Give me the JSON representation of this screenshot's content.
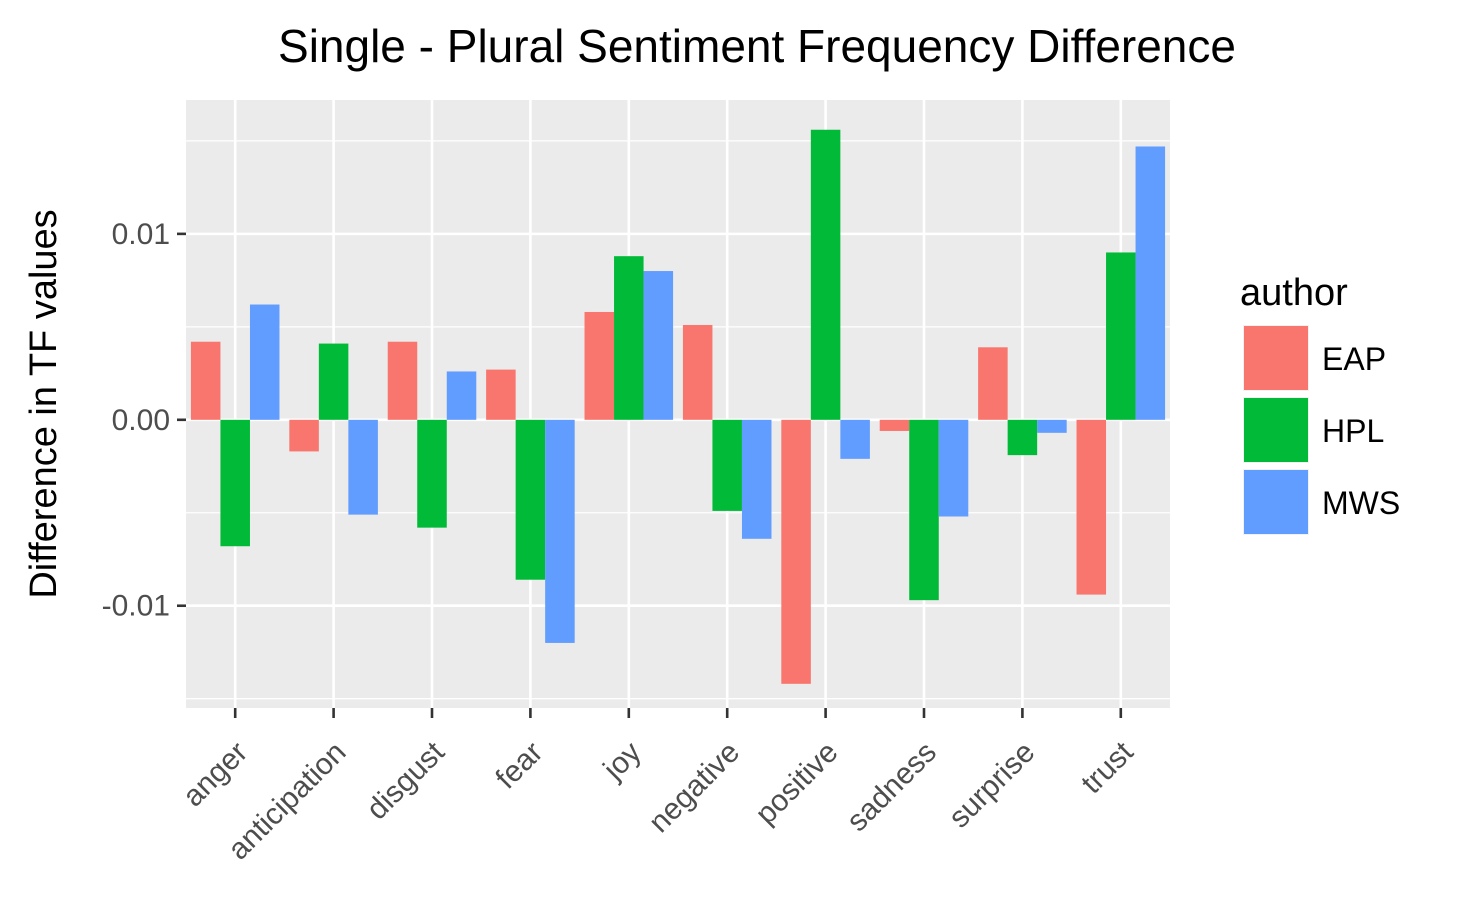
{
  "chart_data": {
    "type": "bar",
    "title": "Single - Plural Sentiment Frequency Difference",
    "xlabel": "",
    "ylabel": "Difference in TF values",
    "categories": [
      "anger",
      "anticipation",
      "disgust",
      "fear",
      "joy",
      "negative",
      "positive",
      "sadness",
      "surprise",
      "trust"
    ],
    "series": [
      {
        "name": "EAP",
        "color": "#F8766D",
        "values": [
          0.0042,
          -0.0017,
          0.0042,
          0.0027,
          0.0058,
          0.0051,
          -0.0142,
          -0.0006,
          0.0039,
          -0.0094
        ]
      },
      {
        "name": "HPL",
        "color": "#00BA38",
        "values": [
          -0.0068,
          0.0041,
          -0.0058,
          -0.0086,
          0.0088,
          -0.0049,
          0.0156,
          -0.0097,
          -0.0019,
          0.009
        ]
      },
      {
        "name": "MWS",
        "color": "#619CFF",
        "values": [
          0.0062,
          -0.0051,
          0.0026,
          -0.012,
          0.008,
          -0.0064,
          -0.0021,
          -0.0052,
          -0.0007,
          0.0147
        ]
      }
    ],
    "ylim": [
      -0.0155,
      0.0172
    ],
    "yticks": [
      -0.01,
      0.0,
      0.01
    ],
    "ytick_labels": [
      "-0.01",
      "0.00",
      "0.01"
    ],
    "grid": true,
    "legend": {
      "title": "author",
      "position": "right"
    }
  }
}
